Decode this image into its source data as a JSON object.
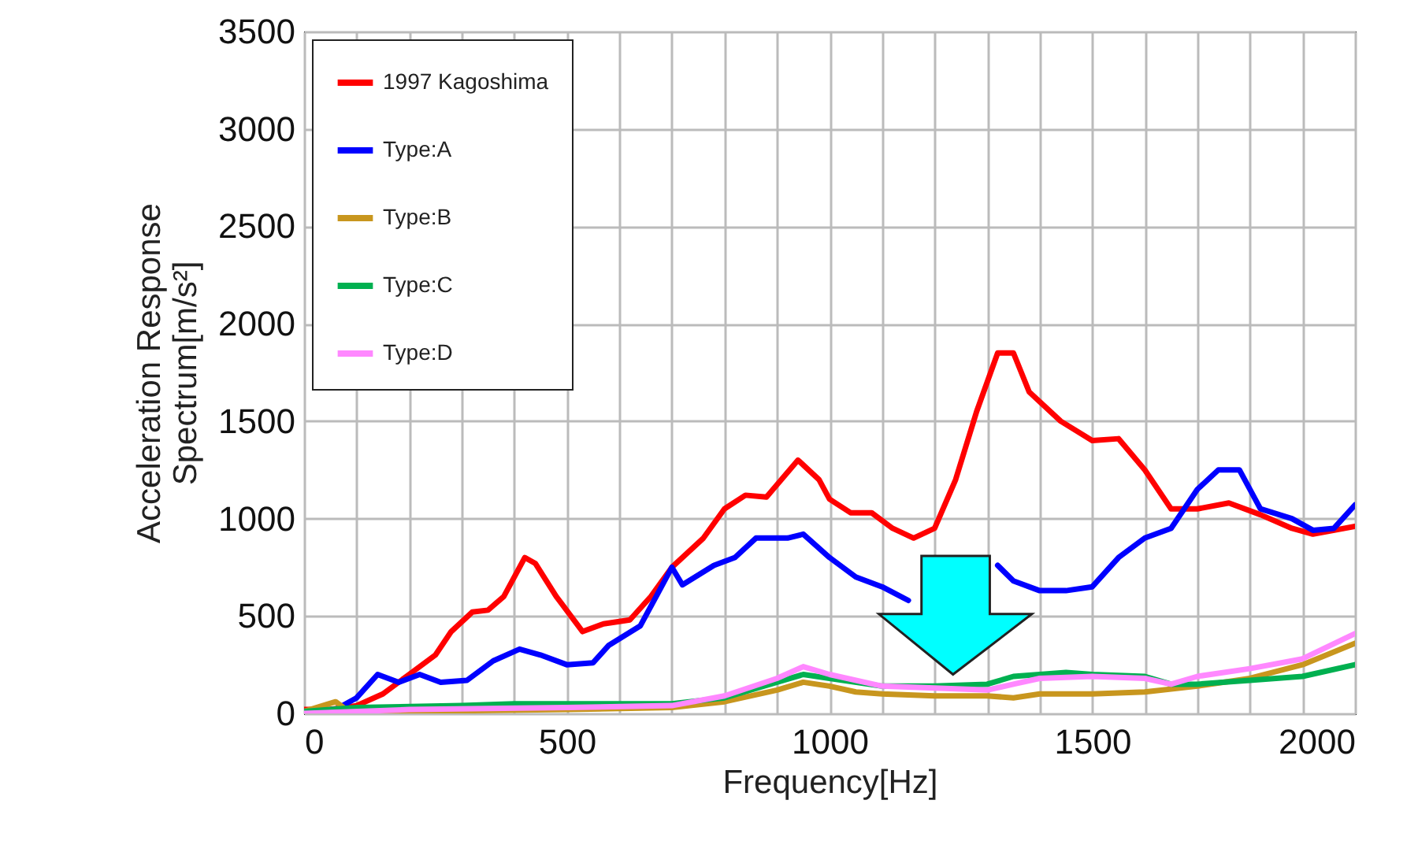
{
  "chart_data": {
    "type": "line",
    "xlabel": "Frequency[Hz]",
    "ylabel": "Acceleration Response Spectrum[m/s²]",
    "xlim": [
      0,
      2000
    ],
    "ylim": [
      0,
      3500
    ],
    "xticks": [
      0,
      {
        "value": 100,
        "label": null
      },
      {
        "value": 200,
        "label": null
      },
      {
        "value": 300,
        "label": null
      },
      {
        "value": 400,
        "label": null
      },
      500,
      {
        "value": 600,
        "label": null
      },
      {
        "value": 700,
        "label": null
      },
      {
        "value": 800,
        "label": null
      },
      {
        "value": 900,
        "label": null
      },
      1000,
      {
        "value": 1100,
        "label": null
      },
      {
        "value": 1200,
        "label": null
      },
      {
        "value": 1300,
        "label": null
      },
      {
        "value": 1400,
        "label": null
      },
      1500,
      {
        "value": 1600,
        "label": null
      },
      {
        "value": 1700,
        "label": null
      },
      {
        "value": 1800,
        "label": null
      },
      {
        "value": 1900,
        "label": null
      },
      2000
    ],
    "yticks": [
      0,
      500,
      1000,
      1500,
      2000,
      2500,
      3000,
      3500
    ],
    "grid": true,
    "legend": "top left",
    "marker": "none",
    "line_style": "solid",
    "series": [
      {
        "name": "1997 Kagoshima",
        "color": "#ff0000",
        "x": [
          0,
          50,
          100,
          150,
          200,
          250,
          280,
          320,
          350,
          380,
          420,
          440,
          480,
          530,
          570,
          620,
          660,
          700,
          760,
          800,
          840,
          880,
          940,
          980,
          1000,
          1040,
          1080,
          1120,
          1160,
          1200,
          1240,
          1280,
          1320,
          1350,
          1380,
          1440,
          1500,
          1550,
          1600,
          1650,
          1700,
          1760,
          1820,
          1880,
          1920,
          2000
        ],
        "values": [
          20,
          20,
          40,
          100,
          200,
          300,
          420,
          520,
          530,
          600,
          800,
          770,
          600,
          420,
          460,
          480,
          600,
          750,
          900,
          1050,
          1120,
          1110,
          1300,
          1200,
          1100,
          1030,
          1030,
          950,
          900,
          950,
          1200,
          1550,
          1850,
          1850,
          1650,
          1500,
          1400,
          1410,
          1250,
          1050,
          1050,
          1080,
          1020,
          950,
          920,
          960
        ]
      },
      {
        "name": "Type:A",
        "color": "#0000ff",
        "x": [
          0,
          60,
          100,
          140,
          180,
          220,
          260,
          310,
          360,
          410,
          450,
          500,
          550,
          580,
          640,
          670,
          700,
          720,
          780,
          820,
          860,
          920,
          950,
          1000,
          1050,
          1100,
          1150,
          1200,
          1250,
          1320,
          1350,
          1400,
          1450,
          1500,
          1550,
          1600,
          1650,
          1700,
          1740,
          1780,
          1820,
          1880,
          1920,
          1960,
          2000
        ],
        "values": [
          10,
          20,
          80,
          200,
          160,
          200,
          160,
          170,
          270,
          330,
          300,
          250,
          260,
          350,
          450,
          600,
          750,
          660,
          760,
          800,
          900,
          900,
          920,
          800,
          700,
          650,
          580,
          null,
          null,
          760,
          680,
          630,
          630,
          650,
          800,
          900,
          950,
          1150,
          1250,
          1250,
          1050,
          1000,
          940,
          950,
          1070
        ]
      },
      {
        "name": "Type:B",
        "color": "#c8961e",
        "x": [
          0,
          60,
          80,
          200,
          500,
          700,
          800,
          900,
          950,
          1000,
          1050,
          1100,
          1200,
          1300,
          1350,
          1400,
          1500,
          1600,
          1700,
          1800,
          1900,
          2000
        ],
        "values": [
          10,
          60,
          20,
          10,
          20,
          30,
          60,
          120,
          160,
          140,
          110,
          100,
          90,
          90,
          80,
          100,
          100,
          110,
          140,
          180,
          250,
          360
        ]
      },
      {
        "name": "Type:C",
        "color": "#00b050",
        "x": [
          0,
          100,
          300,
          400,
          500,
          700,
          800,
          900,
          950,
          1000,
          1100,
          1200,
          1300,
          1350,
          1400,
          1450,
          1500,
          1600,
          1650,
          1700,
          1800,
          1900,
          2000
        ],
        "values": [
          10,
          30,
          40,
          50,
          50,
          50,
          80,
          160,
          200,
          180,
          140,
          140,
          150,
          190,
          200,
          210,
          200,
          190,
          150,
          150,
          170,
          190,
          250
        ]
      },
      {
        "name": "Type:D",
        "color": "#ff88ff",
        "x": [
          0,
          200,
          500,
          700,
          800,
          900,
          950,
          1000,
          1100,
          1200,
          1300,
          1350,
          1400,
          1500,
          1600,
          1650,
          1700,
          1800,
          1900,
          2000
        ],
        "values": [
          0,
          20,
          30,
          40,
          90,
          180,
          240,
          200,
          140,
          130,
          120,
          150,
          180,
          190,
          180,
          150,
          190,
          230,
          280,
          410
        ]
      }
    ]
  }
}
